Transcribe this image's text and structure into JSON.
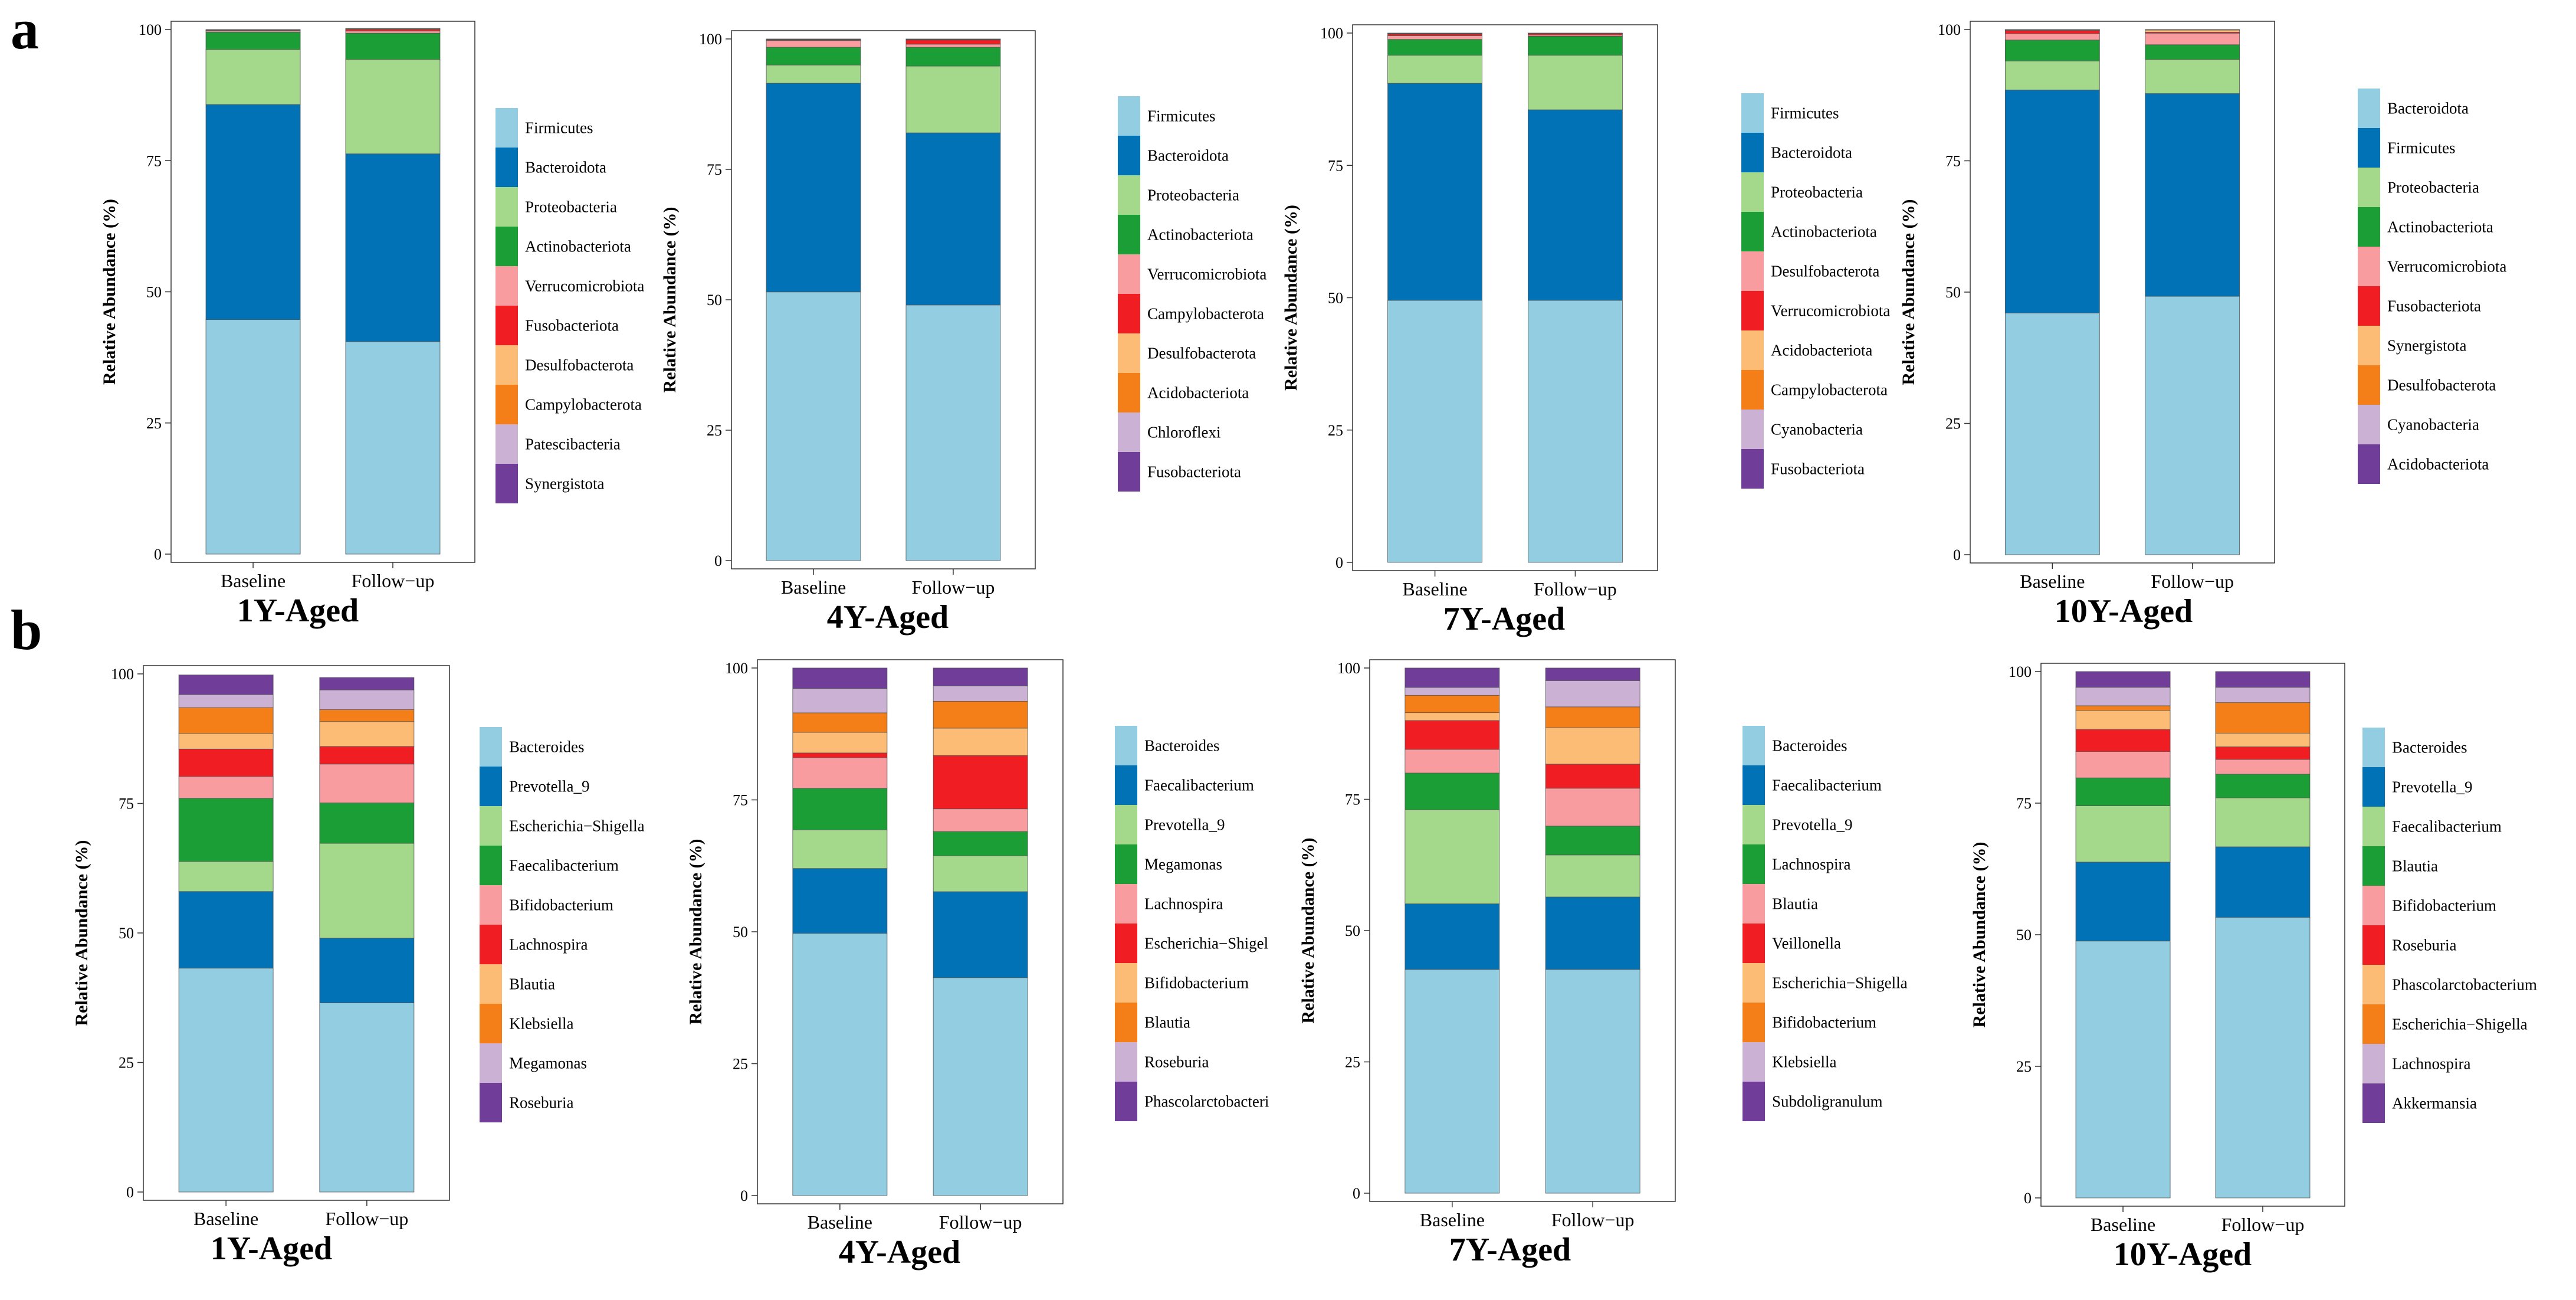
{
  "panels": {
    "a": "a",
    "b": "b"
  },
  "colors": [
    "#92CDE1",
    "#0072B5",
    "#A4D88A",
    "#1B9E35",
    "#F99CA0",
    "#F01D22",
    "#FDBC75",
    "#F47F18",
    "#CBB2D5",
    "#703D98"
  ],
  "chart_data": [
    {
      "type": "bar",
      "stacked": true,
      "panel": "a",
      "title": "1Y-Aged",
      "ylabel": "Relative Abundance (%)",
      "xlabel": "",
      "ylim": [
        0,
        100
      ],
      "yticks": [
        0,
        25,
        50,
        75,
        100
      ],
      "categories": [
        "Baseline",
        "Follow−up"
      ],
      "legend_position": "right",
      "series": [
        {
          "name": "Firmicutes",
          "values": [
            44.7,
            40.5
          ]
        },
        {
          "name": "Bacteroidota",
          "values": [
            41.0,
            35.8
          ]
        },
        {
          "name": "Proteobacteria",
          "values": [
            10.5,
            18.0
          ]
        },
        {
          "name": "Actinobacteriota",
          "values": [
            3.3,
            5.0
          ]
        },
        {
          "name": "Verrucomicrobiota",
          "values": [
            0.2,
            0.4
          ]
        },
        {
          "name": "Fusobacteriota",
          "values": [
            0.1,
            0.3
          ]
        },
        {
          "name": "Desulfobacterota",
          "values": [
            0.1,
            0.1
          ]
        },
        {
          "name": "Campylobacterota",
          "values": [
            0.1,
            0.1
          ]
        },
        {
          "name": "Patescibacteria",
          "values": [
            0,
            0
          ]
        },
        {
          "name": "Synergistota",
          "values": [
            0,
            0
          ]
        }
      ]
    },
    {
      "type": "bar",
      "stacked": true,
      "panel": "a",
      "title": "4Y-Aged",
      "ylabel": "Relative Abundance (%)",
      "xlabel": "",
      "ylim": [
        0,
        100
      ],
      "yticks": [
        0,
        25,
        50,
        75,
        100
      ],
      "categories": [
        "Baseline",
        "Follow−up"
      ],
      "legend_position": "right",
      "series": [
        {
          "name": "Firmicutes",
          "values": [
            51.5,
            49.0
          ]
        },
        {
          "name": "Bacteroidota",
          "values": [
            40.0,
            33.0
          ]
        },
        {
          "name": "Proteobacteria",
          "values": [
            3.5,
            12.8
          ]
        },
        {
          "name": "Actinobacteriota",
          "values": [
            3.4,
            3.6
          ]
        },
        {
          "name": "Verrucomicrobiota",
          "values": [
            1.3,
            0.6
          ]
        },
        {
          "name": "Campylobacterota",
          "values": [
            0.1,
            0.8
          ]
        },
        {
          "name": "Desulfobacterota",
          "values": [
            0.1,
            0.1
          ]
        },
        {
          "name": "Acidobacteriota",
          "values": [
            0.05,
            0.05
          ]
        },
        {
          "name": "Chloroflexi",
          "values": [
            0.05,
            0.05
          ]
        },
        {
          "name": "Fusobacteriota",
          "values": [
            0,
            0
          ]
        }
      ]
    },
    {
      "type": "bar",
      "stacked": true,
      "panel": "a",
      "title": "7Y-Aged",
      "ylabel": "Relative Abundance (%)",
      "xlabel": "",
      "ylim": [
        0,
        100
      ],
      "yticks": [
        0,
        25,
        50,
        75,
        100
      ],
      "categories": [
        "Baseline",
        "Follow−up"
      ],
      "legend_position": "right",
      "series": [
        {
          "name": "Firmicutes",
          "values": [
            49.5,
            49.5
          ]
        },
        {
          "name": "Bacteroidota",
          "values": [
            41.0,
            36.0
          ]
        },
        {
          "name": "Proteobacteria",
          "values": [
            5.3,
            10.3
          ]
        },
        {
          "name": "Actinobacteriota",
          "values": [
            3.0,
            3.6
          ]
        },
        {
          "name": "Desulfobacterota",
          "values": [
            0.7,
            0.2
          ]
        },
        {
          "name": "Verrucomicrobiota",
          "values": [
            0.3,
            0.3
          ]
        },
        {
          "name": "Acidobacteriota",
          "values": [
            0.1,
            0.05
          ]
        },
        {
          "name": "Campylobacterota",
          "values": [
            0.05,
            0.05
          ]
        },
        {
          "name": "Cyanobacteria",
          "values": [
            0.05,
            0
          ]
        },
        {
          "name": "Fusobacteriota",
          "values": [
            0,
            0
          ]
        }
      ]
    },
    {
      "type": "bar",
      "stacked": true,
      "panel": "a",
      "title": "10Y-Aged",
      "ylabel": "Relative Abundance (%)",
      "xlabel": "",
      "ylim": [
        0,
        100
      ],
      "yticks": [
        0,
        25,
        50,
        75,
        100
      ],
      "categories": [
        "Baseline",
        "Follow−up"
      ],
      "legend_position": "right",
      "series": [
        {
          "name": "Bacteroidota",
          "values": [
            46.0,
            49.2
          ]
        },
        {
          "name": "Firmicutes",
          "values": [
            42.5,
            38.6
          ]
        },
        {
          "name": "Proteobacteria",
          "values": [
            5.5,
            6.5
          ]
        },
        {
          "name": "Actinobacteriota",
          "values": [
            4.0,
            2.8
          ]
        },
        {
          "name": "Verrucomicrobiota",
          "values": [
            1.2,
            2.2
          ]
        },
        {
          "name": "Fusobacteriota",
          "values": [
            0.6,
            0.2
          ]
        },
        {
          "name": "Synergistota",
          "values": [
            0.1,
            0.4
          ]
        },
        {
          "name": "Desulfobacterota",
          "values": [
            0.05,
            0.05
          ]
        },
        {
          "name": "Cyanobacteria",
          "values": [
            0.05,
            0.05
          ]
        },
        {
          "name": "Acidobacteriota",
          "values": [
            0,
            0
          ]
        }
      ]
    },
    {
      "type": "bar",
      "stacked": true,
      "panel": "b",
      "title": "1Y-Aged",
      "ylabel": "Relative Abundance (%)",
      "xlabel": "",
      "ylim": [
        0,
        100
      ],
      "yticks": [
        0,
        25,
        50,
        75,
        100
      ],
      "categories": [
        "Baseline",
        "Follow−up"
      ],
      "legend_position": "right",
      "series": [
        {
          "name": "Bacteroides",
          "values": [
            43.2,
            36.5
          ]
        },
        {
          "name": "Prevotella_9",
          "values": [
            14.8,
            12.5
          ]
        },
        {
          "name": "Escherichia−Shigella",
          "values": [
            5.8,
            18.3
          ]
        },
        {
          "name": "Faecalibacterium",
          "values": [
            12.2,
            7.8
          ]
        },
        {
          "name": "Bifidobacterium",
          "values": [
            4.2,
            7.5
          ]
        },
        {
          "name": "Lachnospira",
          "values": [
            5.3,
            3.4
          ]
        },
        {
          "name": "Blautia",
          "values": [
            3.0,
            4.8
          ]
        },
        {
          "name": "Klebsiella",
          "values": [
            5.0,
            2.3
          ]
        },
        {
          "name": "Megamonas",
          "values": [
            2.5,
            3.8
          ]
        },
        {
          "name": "Roseburia",
          "values": [
            3.8,
            2.4
          ]
        }
      ]
    },
    {
      "type": "bar",
      "stacked": true,
      "panel": "b",
      "title": "4Y-Aged",
      "ylabel": "Relative Abundance (%)",
      "xlabel": "",
      "ylim": [
        0,
        100
      ],
      "yticks": [
        0,
        25,
        50,
        75,
        100
      ],
      "categories": [
        "Baseline",
        "Follow−up"
      ],
      "legend_position": "right",
      "series": [
        {
          "name": "Bacteroides",
          "values": [
            49.7,
            41.3
          ]
        },
        {
          "name": "Faecalibacterium",
          "values": [
            12.3,
            16.3
          ]
        },
        {
          "name": "Prevotella_9",
          "values": [
            7.3,
            6.8
          ]
        },
        {
          "name": "Megamonas",
          "values": [
            7.9,
            4.6
          ]
        },
        {
          "name": "Lachnospira",
          "values": [
            5.8,
            4.3
          ]
        },
        {
          "name": "Escherichia−Shigel",
          "values": [
            0.9,
            10.1
          ]
        },
        {
          "name": "Bifidobacterium",
          "values": [
            3.9,
            5.2
          ]
        },
        {
          "name": "Blautia",
          "values": [
            3.7,
            5.1
          ]
        },
        {
          "name": "Roseburia",
          "values": [
            4.6,
            2.9
          ]
        },
        {
          "name": "Phascolarctobacteri",
          "values": [
            3.9,
            3.4
          ]
        }
      ]
    },
    {
      "type": "bar",
      "stacked": true,
      "panel": "b",
      "title": "7Y-Aged",
      "ylabel": "Relative Abundance (%)",
      "xlabel": "",
      "ylim": [
        0,
        100
      ],
      "yticks": [
        0,
        25,
        50,
        75,
        100
      ],
      "categories": [
        "Baseline",
        "Follow−up"
      ],
      "legend_position": "right",
      "series": [
        {
          "name": "Bacteroides",
          "values": [
            42.6,
            42.6
          ]
        },
        {
          "name": "Faecalibacterium",
          "values": [
            12.5,
            13.8
          ]
        },
        {
          "name": "Prevotella_9",
          "values": [
            17.9,
            8.0
          ]
        },
        {
          "name": "Lachnospira",
          "values": [
            7.0,
            5.5
          ]
        },
        {
          "name": "Blautia",
          "values": [
            4.5,
            7.2
          ]
        },
        {
          "name": "Veillonella",
          "values": [
            5.5,
            4.6
          ]
        },
        {
          "name": "Escherichia−Shigella",
          "values": [
            1.5,
            6.9
          ]
        },
        {
          "name": "Bifidobacterium",
          "values": [
            3.3,
            4.0
          ]
        },
        {
          "name": "Klebsiella",
          "values": [
            1.5,
            5.0
          ]
        },
        {
          "name": "Subdoligranulum",
          "values": [
            3.7,
            2.4
          ]
        }
      ]
    },
    {
      "type": "bar",
      "stacked": true,
      "panel": "b",
      "title": "10Y-Aged",
      "ylabel": "Relative Abundance (%)",
      "xlabel": "",
      "ylim": [
        0,
        100
      ],
      "yticks": [
        0,
        25,
        50,
        75,
        100
      ],
      "categories": [
        "Baseline",
        "Follow−up"
      ],
      "legend_position": "right",
      "series": [
        {
          "name": "Bacteroides",
          "values": [
            48.8,
            53.3
          ]
        },
        {
          "name": "Prevotella_9",
          "values": [
            15.0,
            13.4
          ]
        },
        {
          "name": "Faecalibacterium",
          "values": [
            10.7,
            9.3
          ]
        },
        {
          "name": "Blautia",
          "values": [
            5.3,
            4.5
          ]
        },
        {
          "name": "Bifidobacterium",
          "values": [
            5.0,
            2.8
          ]
        },
        {
          "name": "Roseburia",
          "values": [
            4.2,
            2.4
          ]
        },
        {
          "name": "Phascolarctobacterium",
          "values": [
            3.6,
            2.6
          ]
        },
        {
          "name": "Escherichia−Shigella",
          "values": [
            0.9,
            5.8
          ]
        },
        {
          "name": "Lachnospira",
          "values": [
            3.5,
            2.9
          ]
        },
        {
          "name": "Akkermansia",
          "values": [
            3.0,
            3.0
          ]
        }
      ]
    }
  ]
}
